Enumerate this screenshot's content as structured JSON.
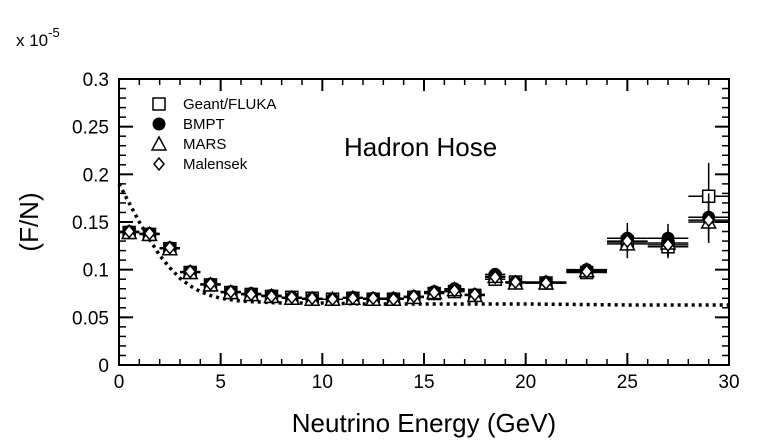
{
  "chart_data": {
    "type": "scatter",
    "title": "",
    "annotation": "Hadron Hose",
    "xlabel": "Neutrino Energy (GeV)",
    "ylabel": "(F/N)",
    "scale_label_prefix": "x 10",
    "scale_label_exponent": "-5",
    "xlim": [
      0,
      30
    ],
    "ylim": [
      0,
      0.3
    ],
    "x_ticks": [
      0,
      5,
      10,
      15,
      20,
      25,
      30
    ],
    "x_tick_labels": [
      "0",
      "5",
      "10",
      "15",
      "20",
      "25",
      "30"
    ],
    "y_ticks": [
      0,
      0.05,
      0.1,
      0.15,
      0.2,
      0.25,
      0.3
    ],
    "y_tick_labels": [
      "0",
      "0.05",
      "0.1",
      "0.15",
      "0.2",
      "0.25",
      "0.3"
    ],
    "grid": false,
    "legend_position": "top-left",
    "series": [
      {
        "name": "Geant/FLUKA",
        "marker": "open-square",
        "points": [
          {
            "x": 0.5,
            "y": 0.139,
            "xerr": 0.5,
            "yerr": 0.004
          },
          {
            "x": 1.5,
            "y": 0.137,
            "xerr": 0.5,
            "yerr": 0.004
          },
          {
            "x": 2.5,
            "y": 0.122,
            "xerr": 0.5,
            "yerr": 0.004
          },
          {
            "x": 3.5,
            "y": 0.097,
            "xerr": 0.5,
            "yerr": 0.003
          },
          {
            "x": 4.5,
            "y": 0.084,
            "xerr": 0.5,
            "yerr": 0.003
          },
          {
            "x": 5.5,
            "y": 0.076,
            "xerr": 0.5,
            "yerr": 0.003
          },
          {
            "x": 6.5,
            "y": 0.074,
            "xerr": 0.5,
            "yerr": 0.003
          },
          {
            "x": 7.5,
            "y": 0.072,
            "xerr": 0.5,
            "yerr": 0.003
          },
          {
            "x": 8.5,
            "y": 0.071,
            "xerr": 0.5,
            "yerr": 0.003
          },
          {
            "x": 9.5,
            "y": 0.07,
            "xerr": 0.5,
            "yerr": 0.003
          },
          {
            "x": 10.5,
            "y": 0.069,
            "xerr": 0.5,
            "yerr": 0.003
          },
          {
            "x": 11.5,
            "y": 0.07,
            "xerr": 0.5,
            "yerr": 0.003
          },
          {
            "x": 12.5,
            "y": 0.069,
            "xerr": 0.5,
            "yerr": 0.003
          },
          {
            "x": 13.5,
            "y": 0.069,
            "xerr": 0.5,
            "yerr": 0.003
          },
          {
            "x": 14.5,
            "y": 0.071,
            "xerr": 0.5,
            "yerr": 0.003
          },
          {
            "x": 15.5,
            "y": 0.075,
            "xerr": 0.5,
            "yerr": 0.004
          },
          {
            "x": 16.5,
            "y": 0.077,
            "xerr": 0.5,
            "yerr": 0.004
          },
          {
            "x": 17.5,
            "y": 0.073,
            "xerr": 0.5,
            "yerr": 0.004
          },
          {
            "x": 18.5,
            "y": 0.09,
            "xerr": 0.5,
            "yerr": 0.005
          },
          {
            "x": 19.5,
            "y": 0.087,
            "xerr": 0.5,
            "yerr": 0.005
          },
          {
            "x": 21.0,
            "y": 0.086,
            "xerr": 1.0,
            "yerr": 0.005
          },
          {
            "x": 23.0,
            "y": 0.097,
            "xerr": 1.0,
            "yerr": 0.006
          },
          {
            "x": 25.0,
            "y": 0.129,
            "xerr": 1.0,
            "yerr": 0.01
          },
          {
            "x": 27.0,
            "y": 0.124,
            "xerr": 1.0,
            "yerr": 0.012
          },
          {
            "x": 29.0,
            "y": 0.177,
            "xerr": 1.0,
            "yerr": 0.035
          }
        ]
      },
      {
        "name": "BMPT",
        "marker": "filled-circle",
        "points": [
          {
            "x": 0.5,
            "y": 0.14,
            "xerr": 0.5,
            "yerr": 0.004
          },
          {
            "x": 1.5,
            "y": 0.138,
            "xerr": 0.5,
            "yerr": 0.004
          },
          {
            "x": 2.5,
            "y": 0.123,
            "xerr": 0.5,
            "yerr": 0.004
          },
          {
            "x": 3.5,
            "y": 0.098,
            "xerr": 0.5,
            "yerr": 0.003
          },
          {
            "x": 4.5,
            "y": 0.085,
            "xerr": 0.5,
            "yerr": 0.003
          },
          {
            "x": 5.5,
            "y": 0.077,
            "xerr": 0.5,
            "yerr": 0.003
          },
          {
            "x": 6.5,
            "y": 0.075,
            "xerr": 0.5,
            "yerr": 0.003
          },
          {
            "x": 7.5,
            "y": 0.073,
            "xerr": 0.5,
            "yerr": 0.003
          },
          {
            "x": 8.5,
            "y": 0.071,
            "xerr": 0.5,
            "yerr": 0.003
          },
          {
            "x": 9.5,
            "y": 0.07,
            "xerr": 0.5,
            "yerr": 0.003
          },
          {
            "x": 10.5,
            "y": 0.069,
            "xerr": 0.5,
            "yerr": 0.003
          },
          {
            "x": 11.5,
            "y": 0.071,
            "xerr": 0.5,
            "yerr": 0.003
          },
          {
            "x": 12.5,
            "y": 0.07,
            "xerr": 0.5,
            "yerr": 0.003
          },
          {
            "x": 13.5,
            "y": 0.07,
            "xerr": 0.5,
            "yerr": 0.003
          },
          {
            "x": 14.5,
            "y": 0.072,
            "xerr": 0.5,
            "yerr": 0.003
          },
          {
            "x": 15.5,
            "y": 0.077,
            "xerr": 0.5,
            "yerr": 0.004
          },
          {
            "x": 16.5,
            "y": 0.08,
            "xerr": 0.5,
            "yerr": 0.004
          },
          {
            "x": 17.5,
            "y": 0.074,
            "xerr": 0.5,
            "yerr": 0.004
          },
          {
            "x": 18.5,
            "y": 0.095,
            "xerr": 0.5,
            "yerr": 0.005
          },
          {
            "x": 19.5,
            "y": 0.087,
            "xerr": 0.5,
            "yerr": 0.005
          },
          {
            "x": 21.0,
            "y": 0.087,
            "xerr": 1.0,
            "yerr": 0.005
          },
          {
            "x": 23.0,
            "y": 0.1,
            "xerr": 1.0,
            "yerr": 0.006
          },
          {
            "x": 25.0,
            "y": 0.133,
            "xerr": 1.0,
            "yerr": 0.016
          },
          {
            "x": 27.0,
            "y": 0.133,
            "xerr": 1.0,
            "yerr": 0.015
          },
          {
            "x": 29.0,
            "y": 0.155,
            "xerr": 1.0,
            "yerr": 0.025
          }
        ]
      },
      {
        "name": "MARS",
        "marker": "open-triangle",
        "points": [
          {
            "x": 0.5,
            "y": 0.139,
            "xerr": 0.5,
            "yerr": 0.004
          },
          {
            "x": 1.5,
            "y": 0.137,
            "xerr": 0.5,
            "yerr": 0.004
          },
          {
            "x": 2.5,
            "y": 0.122,
            "xerr": 0.5,
            "yerr": 0.004
          },
          {
            "x": 3.5,
            "y": 0.097,
            "xerr": 0.5,
            "yerr": 0.003
          },
          {
            "x": 4.5,
            "y": 0.084,
            "xerr": 0.5,
            "yerr": 0.003
          },
          {
            "x": 5.5,
            "y": 0.076,
            "xerr": 0.5,
            "yerr": 0.003
          },
          {
            "x": 6.5,
            "y": 0.074,
            "xerr": 0.5,
            "yerr": 0.003
          },
          {
            "x": 7.5,
            "y": 0.072,
            "xerr": 0.5,
            "yerr": 0.003
          },
          {
            "x": 8.5,
            "y": 0.07,
            "xerr": 0.5,
            "yerr": 0.003
          },
          {
            "x": 9.5,
            "y": 0.069,
            "xerr": 0.5,
            "yerr": 0.003
          },
          {
            "x": 10.5,
            "y": 0.069,
            "xerr": 0.5,
            "yerr": 0.003
          },
          {
            "x": 11.5,
            "y": 0.07,
            "xerr": 0.5,
            "yerr": 0.003
          },
          {
            "x": 12.5,
            "y": 0.069,
            "xerr": 0.5,
            "yerr": 0.003
          },
          {
            "x": 13.5,
            "y": 0.069,
            "xerr": 0.5,
            "yerr": 0.003
          },
          {
            "x": 14.5,
            "y": 0.071,
            "xerr": 0.5,
            "yerr": 0.003
          },
          {
            "x": 15.5,
            "y": 0.076,
            "xerr": 0.5,
            "yerr": 0.004
          },
          {
            "x": 16.5,
            "y": 0.079,
            "xerr": 0.5,
            "yerr": 0.004
          },
          {
            "x": 17.5,
            "y": 0.073,
            "xerr": 0.5,
            "yerr": 0.004
          },
          {
            "x": 18.5,
            "y": 0.093,
            "xerr": 0.5,
            "yerr": 0.005
          },
          {
            "x": 19.5,
            "y": 0.086,
            "xerr": 0.5,
            "yerr": 0.005
          },
          {
            "x": 21.0,
            "y": 0.086,
            "xerr": 1.0,
            "yerr": 0.005
          },
          {
            "x": 23.0,
            "y": 0.099,
            "xerr": 1.0,
            "yerr": 0.006
          },
          {
            "x": 25.0,
            "y": 0.127,
            "xerr": 1.0,
            "yerr": 0.015
          },
          {
            "x": 27.0,
            "y": 0.128,
            "xerr": 1.0,
            "yerr": 0.014
          },
          {
            "x": 29.0,
            "y": 0.15,
            "xerr": 1.0,
            "yerr": 0.022
          }
        ]
      },
      {
        "name": "Malensek",
        "marker": "open-diamond",
        "points": [
          {
            "x": 0.5,
            "y": 0.14,
            "xerr": 0.5,
            "yerr": 0.004
          },
          {
            "x": 1.5,
            "y": 0.138,
            "xerr": 0.5,
            "yerr": 0.004
          },
          {
            "x": 2.5,
            "y": 0.123,
            "xerr": 0.5,
            "yerr": 0.004
          },
          {
            "x": 3.5,
            "y": 0.098,
            "xerr": 0.5,
            "yerr": 0.003
          },
          {
            "x": 4.5,
            "y": 0.085,
            "xerr": 0.5,
            "yerr": 0.003
          },
          {
            "x": 5.5,
            "y": 0.077,
            "xerr": 0.5,
            "yerr": 0.003
          },
          {
            "x": 6.5,
            "y": 0.074,
            "xerr": 0.5,
            "yerr": 0.003
          },
          {
            "x": 7.5,
            "y": 0.072,
            "xerr": 0.5,
            "yerr": 0.003
          },
          {
            "x": 8.5,
            "y": 0.071,
            "xerr": 0.5,
            "yerr": 0.003
          },
          {
            "x": 9.5,
            "y": 0.07,
            "xerr": 0.5,
            "yerr": 0.003
          },
          {
            "x": 10.5,
            "y": 0.069,
            "xerr": 0.5,
            "yerr": 0.003
          },
          {
            "x": 11.5,
            "y": 0.07,
            "xerr": 0.5,
            "yerr": 0.003
          },
          {
            "x": 12.5,
            "y": 0.07,
            "xerr": 0.5,
            "yerr": 0.003
          },
          {
            "x": 13.5,
            "y": 0.069,
            "xerr": 0.5,
            "yerr": 0.003
          },
          {
            "x": 14.5,
            "y": 0.072,
            "xerr": 0.5,
            "yerr": 0.003
          },
          {
            "x": 15.5,
            "y": 0.076,
            "xerr": 0.5,
            "yerr": 0.004
          },
          {
            "x": 16.5,
            "y": 0.078,
            "xerr": 0.5,
            "yerr": 0.004
          },
          {
            "x": 17.5,
            "y": 0.074,
            "xerr": 0.5,
            "yerr": 0.004
          },
          {
            "x": 18.5,
            "y": 0.092,
            "xerr": 0.5,
            "yerr": 0.005
          },
          {
            "x": 19.5,
            "y": 0.087,
            "xerr": 0.5,
            "yerr": 0.005
          },
          {
            "x": 21.0,
            "y": 0.086,
            "xerr": 1.0,
            "yerr": 0.005
          },
          {
            "x": 23.0,
            "y": 0.098,
            "xerr": 1.0,
            "yerr": 0.006
          },
          {
            "x": 25.0,
            "y": 0.13,
            "xerr": 1.0,
            "yerr": 0.012
          },
          {
            "x": 27.0,
            "y": 0.126,
            "xerr": 1.0,
            "yerr": 0.012
          },
          {
            "x": 29.0,
            "y": 0.152,
            "xerr": 1.0,
            "yerr": 0.02
          }
        ]
      }
    ],
    "curve": {
      "style": "dotted",
      "x": [
        0,
        0.5,
        1,
        1.5,
        2,
        2.5,
        3,
        3.5,
        4,
        4.5,
        5,
        6,
        7,
        8,
        10,
        12,
        15,
        18,
        20,
        25,
        30
      ],
      "y": [
        0.19,
        0.17,
        0.15,
        0.132,
        0.115,
        0.102,
        0.091,
        0.083,
        0.077,
        0.073,
        0.07,
        0.067,
        0.066,
        0.065,
        0.065,
        0.064,
        0.064,
        0.064,
        0.064,
        0.063,
        0.063
      ]
    }
  }
}
